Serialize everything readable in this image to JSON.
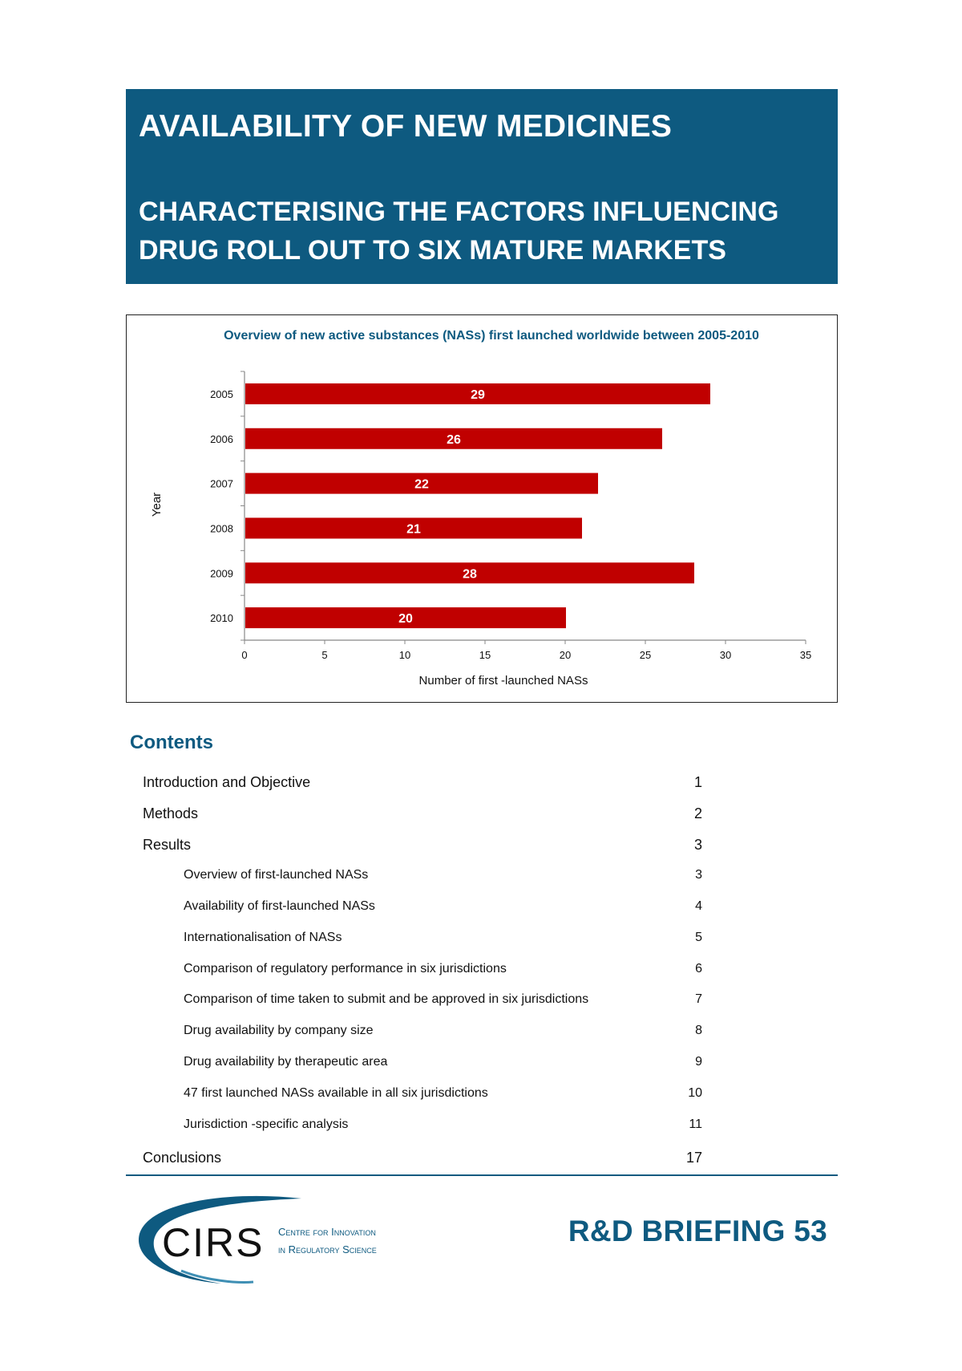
{
  "header": {
    "title": "AVAILABILITY OF NEW MEDICINES",
    "subtitle": "CHARACTERISING THE FACTORS INFLUENCING DRUG ROLL OUT TO SIX MATURE MARKETS"
  },
  "chart_data": {
    "type": "bar",
    "orientation": "horizontal",
    "title": "Overview of new active substances (NASs) first launched worldwide between 2005-2010",
    "xlabel": "Number  of  first -launched NASs",
    "ylabel": "Year",
    "categories": [
      "2005",
      "2006",
      "2007",
      "2008",
      "2009",
      "2010"
    ],
    "values": [
      29,
      26,
      22,
      21,
      28,
      20
    ],
    "xlim": [
      0,
      35
    ],
    "xticks": [
      0,
      5,
      10,
      15,
      20,
      25,
      30,
      35
    ],
    "bar_color": "#c00000",
    "data_labels": true,
    "grid": false
  },
  "contents": {
    "title": "Contents",
    "items": [
      {
        "label": "Introduction and Objective",
        "page": "1",
        "level": 1
      },
      {
        "label": "Methods",
        "page": "2",
        "level": 1
      },
      {
        "label": "Results",
        "page": "3",
        "level": 1
      },
      {
        "label": "Overview of first-launched NASs",
        "page": "3",
        "level": 2
      },
      {
        "label": "Availability of first-launched NASs",
        "page": "4",
        "level": 2
      },
      {
        "label": "Internationalisation of NASs",
        "page": "5",
        "level": 2
      },
      {
        "label": "Comparison of regulatory performance in six jurisdictions",
        "page": "6",
        "level": 2
      },
      {
        "label": "Comparison of  time taken to submit and be approved in six jurisdictions",
        "page": "7",
        "level": 2
      },
      {
        "label": "Drug availability by company size",
        "page": "8",
        "level": 2
      },
      {
        "label": "Drug availability by therapeutic area",
        "page": "9",
        "level": 2
      },
      {
        "label": "47 first launched NASs available in all six jurisdictions",
        "page": "10",
        "level": 2
      },
      {
        "label": "Jurisdiction -specific analysis",
        "page": "11",
        "level": 2
      },
      {
        "label": "Conclusions",
        "page": "17",
        "level": 1
      }
    ]
  },
  "footer": {
    "logo_text": "CIRS",
    "logo_tagline_1": "Centre for Innovation",
    "logo_tagline_2": "in Regulatory Science",
    "briefing": "R&D BRIEFING 53"
  },
  "colors": {
    "brand_blue": "#0e5a80",
    "bar_red": "#c00000"
  }
}
